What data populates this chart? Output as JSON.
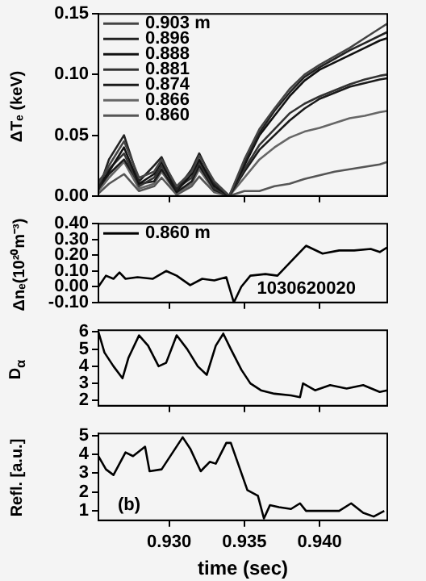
{
  "chart_data": [
    {
      "type": "line",
      "ylabel": "ΔTₑ (keV)",
      "x": [
        0.9253,
        0.926,
        0.927,
        0.928,
        0.929,
        0.9295,
        0.9305,
        0.9315,
        0.932,
        0.933,
        0.934,
        0.935,
        0.936,
        0.937,
        0.938,
        0.939,
        0.94,
        0.941,
        0.942,
        0.943,
        0.944,
        0.9445
      ],
      "xlim": [
        0.9253,
        0.9445
      ],
      "xticks": [
        {
          "value": 0.93,
          "label": null
        },
        {
          "value": 0.935,
          "label": null
        },
        {
          "value": 0.94,
          "label": null
        }
      ],
      "ylim": [
        0,
        0.15
      ],
      "yticks": [
        {
          "value": 0,
          "label": "0.00"
        },
        {
          "value": 0.05,
          "label": "0.05"
        },
        {
          "value": 0.1,
          "label": "0.10"
        },
        {
          "value": 0.15,
          "label": "0.15"
        }
      ],
      "tick_labels": "y",
      "legend": "top left",
      "grid": false,
      "series": [
        {
          "name": "0.903 m",
          "color": "#444444",
          "values": [
            0.01,
            0.025,
            0.045,
            0.015,
            0.02,
            0.03,
            0.008,
            0.02,
            0.033,
            0.012,
            0.0,
            0.03,
            0.055,
            0.072,
            0.088,
            0.1,
            0.108,
            0.115,
            0.122,
            0.13,
            0.138,
            0.142
          ]
        },
        {
          "name": "0.896",
          "color": "#222222",
          "values": [
            0.005,
            0.03,
            0.05,
            0.012,
            0.025,
            0.032,
            0.005,
            0.022,
            0.035,
            0.01,
            0.0,
            0.028,
            0.052,
            0.07,
            0.085,
            0.098,
            0.106,
            0.113,
            0.12,
            0.126,
            0.132,
            0.135
          ]
        },
        {
          "name": "0.888",
          "color": "#111111",
          "values": [
            0.008,
            0.02,
            0.04,
            0.01,
            0.018,
            0.028,
            0.004,
            0.018,
            0.03,
            0.008,
            0.0,
            0.025,
            0.05,
            0.066,
            0.082,
            0.095,
            0.104,
            0.11,
            0.116,
            0.122,
            0.128,
            0.13
          ]
        },
        {
          "name": "0.881",
          "color": "#333333",
          "values": [
            0.012,
            0.022,
            0.035,
            0.008,
            0.015,
            0.025,
            0.006,
            0.015,
            0.028,
            0.006,
            0.0,
            0.022,
            0.042,
            0.055,
            0.068,
            0.076,
            0.082,
            0.087,
            0.092,
            0.096,
            0.099,
            0.1
          ]
        },
        {
          "name": "0.874",
          "color": "#1a1a1a",
          "values": [
            0.006,
            0.018,
            0.03,
            0.01,
            0.012,
            0.022,
            0.003,
            0.012,
            0.025,
            0.005,
            0.0,
            0.02,
            0.038,
            0.05,
            0.062,
            0.072,
            0.08,
            0.085,
            0.09,
            0.093,
            0.096,
            0.097
          ]
        },
        {
          "name": "0.866",
          "color": "#666666",
          "values": [
            0.004,
            0.015,
            0.028,
            0.006,
            0.01,
            0.02,
            0.002,
            0.01,
            0.022,
            0.004,
            0.0,
            0.015,
            0.03,
            0.04,
            0.048,
            0.053,
            0.056,
            0.06,
            0.064,
            0.066,
            0.069,
            0.07
          ]
        },
        {
          "name": "0.860",
          "color": "#555555",
          "values": [
            0.002,
            0.01,
            0.018,
            0.004,
            0.008,
            0.015,
            0.001,
            0.008,
            0.016,
            0.003,
            0.0,
            0.004,
            0.004,
            0.008,
            0.01,
            0.014,
            0.017,
            0.02,
            0.022,
            0.024,
            0.026,
            0.028
          ]
        }
      ]
    },
    {
      "type": "line",
      "ylabel": "Δnₑ(10²⁰m⁻³)",
      "x": [
        0.9253,
        0.9258,
        0.9263,
        0.9267,
        0.9271,
        0.9279,
        0.9289,
        0.9298,
        0.9305,
        0.9314,
        0.9322,
        0.933,
        0.9338,
        0.9343,
        0.9348,
        0.9354,
        0.9364,
        0.9372,
        0.9383,
        0.9391,
        0.9402,
        0.9413,
        0.9423,
        0.9434,
        0.944,
        0.9445
      ],
      "xlim": [
        0.9253,
        0.9445
      ],
      "xticks": [
        {
          "value": 0.93,
          "label": null
        },
        {
          "value": 0.935,
          "label": null
        },
        {
          "value": 0.94,
          "label": null
        }
      ],
      "ylim": [
        -0.1,
        0.4
      ],
      "yticks": [
        {
          "value": -0.1,
          "label": "-0.10"
        },
        {
          "value": 0,
          "label": "0.00"
        },
        {
          "value": 0.1,
          "label": "0.10"
        },
        {
          "value": 0.2,
          "label": "0.20"
        },
        {
          "value": 0.3,
          "label": "0.30"
        },
        {
          "value": 0.4,
          "label": "0.40"
        }
      ],
      "tick_labels": "y",
      "legend": "top left",
      "grid": false,
      "annotations": [
        "1030620020"
      ],
      "series": [
        {
          "name": "0.860 m",
          "color": "#000000",
          "values": [
            0.0,
            0.07,
            0.05,
            0.09,
            0.05,
            0.06,
            0.05,
            0.1,
            0.07,
            0.01,
            0.05,
            0.04,
            0.06,
            -0.1,
            0.0,
            0.07,
            0.08,
            0.07,
            0.18,
            0.26,
            0.21,
            0.23,
            0.23,
            0.24,
            0.22,
            0.25
          ]
        }
      ]
    },
    {
      "type": "line",
      "ylabel": "D$_{α}$",
      "x": [
        0.9253,
        0.9257,
        0.9263,
        0.9269,
        0.9273,
        0.928,
        0.9286,
        0.9293,
        0.9298,
        0.9305,
        0.9312,
        0.9319,
        0.9325,
        0.9331,
        0.9336,
        0.9341,
        0.9348,
        0.9354,
        0.9361,
        0.937,
        0.9381,
        0.9387,
        0.9389,
        0.9397,
        0.9407,
        0.9418,
        0.9429,
        0.944,
        0.9445
      ],
      "xlim": [
        0.9253,
        0.9445
      ],
      "xticks": [
        {
          "value": 0.93,
          "label": null
        },
        {
          "value": 0.935,
          "label": null
        },
        {
          "value": 0.94,
          "label": null
        }
      ],
      "ylim": [
        1.7,
        6.1
      ],
      "yticks": [
        2,
        3,
        4,
        5,
        6
      ],
      "tick_labels": "y",
      "grid": false,
      "series": [
        {
          "color": "#000000",
          "values": [
            6.0,
            4.8,
            4.0,
            3.3,
            4.5,
            5.8,
            5.2,
            4.0,
            4.2,
            5.8,
            5.0,
            4.0,
            3.5,
            5.2,
            5.9,
            5.0,
            3.8,
            3.0,
            2.6,
            2.4,
            2.3,
            2.2,
            3.0,
            2.6,
            2.9,
            2.7,
            2.9,
            2.5,
            2.6
          ]
        }
      ]
    },
    {
      "type": "line",
      "ylabel": "Refl. [a.u.]",
      "xlabel": "time (sec)",
      "x": [
        0.9253,
        0.9258,
        0.9263,
        0.9267,
        0.9271,
        0.9276,
        0.9284,
        0.9287,
        0.9295,
        0.9309,
        0.9314,
        0.9321,
        0.9327,
        0.9331,
        0.9338,
        0.9341,
        0.9352,
        0.9359,
        0.9363,
        0.9367,
        0.9373,
        0.9381,
        0.9387,
        0.9391,
        0.9402,
        0.9413,
        0.9421,
        0.9429,
        0.9436,
        0.9443
      ],
      "xlim": [
        0.9253,
        0.9445
      ],
      "xticks": [
        {
          "value": 0.93,
          "label": "0.930"
        },
        {
          "value": 0.935,
          "label": "0.935"
        },
        {
          "value": 0.94,
          "label": "0.940"
        }
      ],
      "ylim": [
        0.5,
        5.1
      ],
      "yticks": [
        1,
        2,
        3,
        4,
        5
      ],
      "grid": false,
      "annotations": [
        "(b)"
      ],
      "series": [
        {
          "color": "#000000",
          "values": [
            3.9,
            3.2,
            2.9,
            3.5,
            4.1,
            3.9,
            4.4,
            3.1,
            3.2,
            4.9,
            4.3,
            3.1,
            3.6,
            3.5,
            4.6,
            4.6,
            2.1,
            1.8,
            0.6,
            1.3,
            1.2,
            1.1,
            1.4,
            1.0,
            1.0,
            1.0,
            1.4,
            0.9,
            0.7,
            1.0
          ]
        }
      ]
    }
  ]
}
